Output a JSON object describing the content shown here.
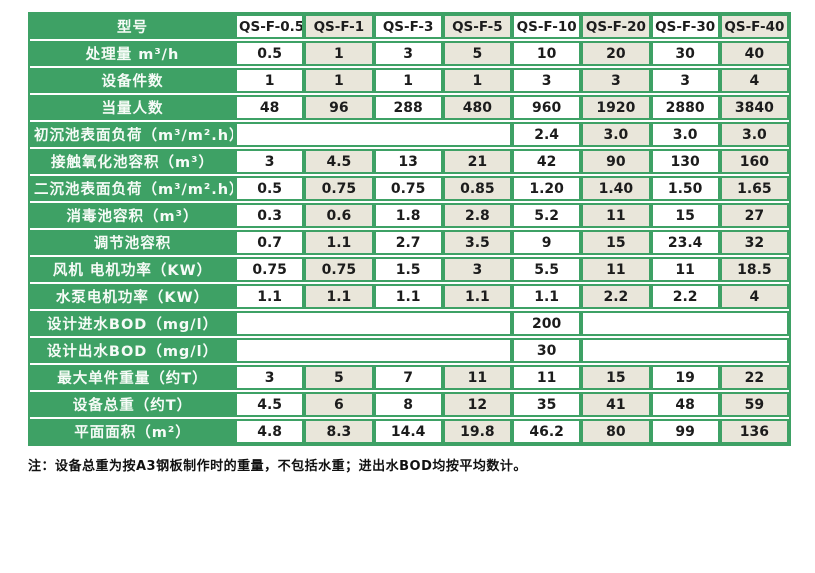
{
  "colors": {
    "green": "#3ea165",
    "beige": "#e9e6da",
    "white": "#ffffff",
    "text": "#1c1c1c"
  },
  "table": {
    "header": {
      "label": "型号",
      "cells": [
        "QS-F-0.5",
        "QS-F-1",
        "QS-F-3",
        "QS-F-5",
        "QS-F-10",
        "QS-F-20",
        "QS-F-30",
        "QS-F-40"
      ]
    },
    "rows": [
      {
        "label": "处理量 m³/h",
        "cells": [
          "0.5",
          "1",
          "3",
          "5",
          "10",
          "20",
          "30",
          "40"
        ]
      },
      {
        "label": "设备件数",
        "cells": [
          "1",
          "1",
          "1",
          "1",
          "3",
          "3",
          "3",
          "4"
        ]
      },
      {
        "label": "当量人数",
        "cells": [
          "48",
          "96",
          "288",
          "480",
          "960",
          "1920",
          "2880",
          "3840"
        ]
      },
      {
        "label": "初沉池表面负荷（m³/m².h）",
        "cells": [
          {
            "text": "",
            "span": 4
          },
          "2.4",
          "3.0",
          "3.0",
          "3.0"
        ]
      },
      {
        "label": "接触氧化池容积（m³）",
        "cells": [
          "3",
          "4.5",
          "13",
          "21",
          "42",
          "90",
          "130",
          "160"
        ]
      },
      {
        "label": "二沉池表面负荷（m³/m².h）",
        "cells": [
          "0.5",
          "0.75",
          "0.75",
          "0.85",
          "1.20",
          "1.40",
          "1.50",
          "1.65"
        ]
      },
      {
        "label": "消毒池容积（m³）",
        "cells": [
          "0.3",
          "0.6",
          "1.8",
          "2.8",
          "5.2",
          "11",
          "15",
          "27"
        ]
      },
      {
        "label": "调节池容积",
        "cells": [
          "0.7",
          "1.1",
          "2.7",
          "3.5",
          "9",
          "15",
          "23.4",
          "32"
        ]
      },
      {
        "label": "风机 电机功率（KW）",
        "cells": [
          "0.75",
          "0.75",
          "1.5",
          "3",
          "5.5",
          "11",
          "11",
          "18.5"
        ]
      },
      {
        "label": "水泵电机功率（KW）",
        "cells": [
          "1.1",
          "1.1",
          "1.1",
          "1.1",
          "1.1",
          "2.2",
          "2.2",
          "4"
        ]
      },
      {
        "label": "设计进水BOD（mg/l）",
        "cells": [
          {
            "text": "",
            "span": 4
          },
          "200",
          {
            "text": "",
            "span": 3
          }
        ]
      },
      {
        "label": "设计出水BOD（mg/l）",
        "cells": [
          {
            "text": "",
            "span": 4
          },
          "30",
          {
            "text": "",
            "span": 3
          }
        ]
      },
      {
        "label": "最大单件重量（约T）",
        "cells": [
          "3",
          "5",
          "7",
          "11",
          "11",
          "15",
          "19",
          "22"
        ]
      },
      {
        "label": "设备总重（约T）",
        "cells": [
          "4.5",
          "6",
          "8",
          "12",
          "35",
          "41",
          "48",
          "59"
        ]
      },
      {
        "label": "平面面积（m²）",
        "cells": [
          "4.8",
          "8.3",
          "14.4",
          "19.8",
          "46.2",
          "80",
          "99",
          "136"
        ]
      }
    ]
  },
  "note": "注：设备总重为按A3钢板制作时的重量，不包括水重；进出水BOD均按平均数计。"
}
